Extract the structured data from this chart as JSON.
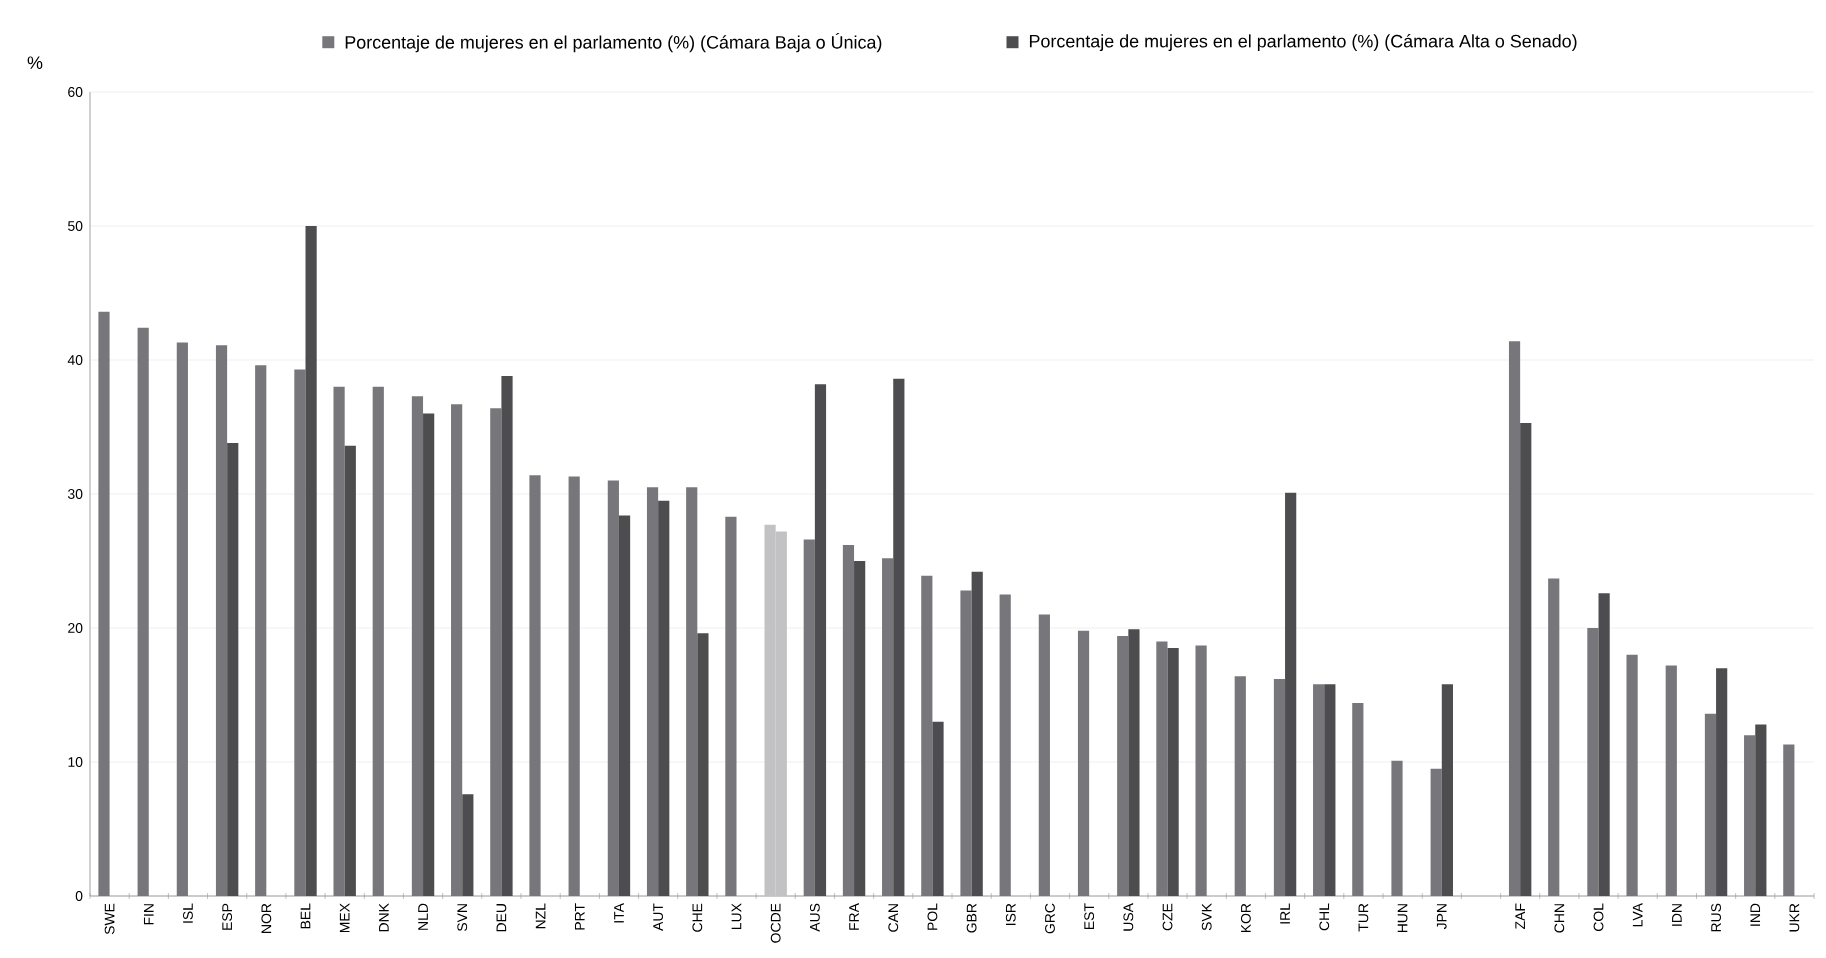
{
  "chart_data": {
    "type": "bar",
    "ylabel": "%",
    "categories": [
      "SWE",
      "FIN",
      "ISL",
      "ESP",
      "NOR",
      "BEL",
      "MEX",
      "DNK",
      "NLD",
      "SVN",
      "DEU",
      "NZL",
      "PRT",
      "ITA",
      "AUT",
      "CHE",
      "LUX",
      "OCDE",
      "AUS",
      "FRA",
      "CAN",
      "POL",
      "GBR",
      "ISR",
      "GRC",
      "EST",
      "USA",
      "CZE",
      "SVK",
      "KOR",
      "IRL",
      "CHL",
      "TUR",
      "HUN",
      "JPN",
      null,
      "ZAF",
      "CHN",
      "COL",
      "LVA",
      "IDN",
      "RUS",
      "IND",
      "UKR"
    ],
    "series": [
      {
        "name": "Porcentaje de mujeres en el parlamento (%) (Cámara Baja o Única)",
        "color": "#77777b",
        "colors": [
          "#77777b",
          "#77777b",
          "#77777b",
          "#77777b",
          "#77777b",
          "#77777b",
          "#77777b",
          "#77777b",
          "#77777b",
          "#77777b",
          "#77777b",
          "#77777b",
          "#77777b",
          "#77777b",
          "#77777b",
          "#77777b",
          "#77777b",
          "#c2c2c4",
          "#77777b",
          "#77777b",
          "#77777b",
          "#77777b",
          "#77777b",
          "#77777b",
          "#77777b",
          "#77777b",
          "#77777b",
          "#77777b",
          "#77777b",
          "#77777b",
          "#77777b",
          "#77777b",
          "#77777b",
          "#77777b",
          "#77777b",
          "#77777b",
          "#77777b",
          "#77777b",
          "#77777b",
          "#77777b",
          "#77777b",
          "#77777b",
          "#77777b",
          "#77777b"
        ],
        "values": [
          43.6,
          42.4,
          41.3,
          41.1,
          39.6,
          39.3,
          38,
          38,
          37.3,
          36.7,
          36.4,
          31.4,
          31.3,
          31,
          30.5,
          30.5,
          28.3,
          27.7,
          26.6,
          26.2,
          25.2,
          23.9,
          22.8,
          22.5,
          21,
          19.8,
          19.4,
          19,
          18.7,
          16.4,
          16.2,
          15.8,
          14.4,
          10.1,
          9.5,
          null,
          41.4,
          23.7,
          20,
          18,
          17.2,
          13.6,
          12,
          11.3
        ]
      },
      {
        "name": "Porcentaje de mujeres en el parlamento (%) (Cámara  Alta o Senado)",
        "color": "#4d4d4f",
        "colors": [
          "#4d4d4f",
          "#4d4d4f",
          "#4d4d4f",
          "#4d4d4f",
          "#4d4d4f",
          "#4d4d4f",
          "#4d4d4f",
          "#4d4d4f",
          "#4d4d4f",
          "#4d4d4f",
          "#4d4d4f",
          "#4d4d4f",
          "#4d4d4f",
          "#4d4d4f",
          "#4d4d4f",
          "#4d4d4f",
          "#4d4d4f",
          "#c2c2c4",
          "#4d4d4f",
          "#4d4d4f",
          "#4d4d4f",
          "#4d4d4f",
          "#4d4d4f",
          "#4d4d4f",
          "#4d4d4f",
          "#4d4d4f",
          "#4d4d4f",
          "#4d4d4f",
          "#4d4d4f",
          "#4d4d4f",
          "#4d4d4f",
          "#4d4d4f",
          "#4d4d4f",
          "#4d4d4f",
          "#4d4d4f",
          "#4d4d4f",
          "#4d4d4f",
          "#4d4d4f",
          "#4d4d4f",
          "#4d4d4f",
          "#4d4d4f",
          "#4d4d4f",
          "#4d4d4f",
          "#4d4d4f"
        ],
        "values": [
          null,
          null,
          null,
          33.8,
          null,
          50,
          33.6,
          null,
          36,
          7.6,
          38.8,
          null,
          null,
          28.4,
          29.5,
          19.6,
          null,
          27.2,
          38.2,
          25,
          38.6,
          13,
          24.2,
          null,
          null,
          null,
          19.9,
          18.5,
          null,
          null,
          30.1,
          15.8,
          null,
          null,
          15.8,
          null,
          35.3,
          null,
          22.6,
          null,
          null,
          17,
          12.8,
          null
        ]
      }
    ],
    "ylim": [
      0,
      60
    ],
    "yticks": [
      0,
      10,
      20,
      30,
      40,
      50,
      60
    ],
    "grid": "y",
    "legend": "top"
  }
}
